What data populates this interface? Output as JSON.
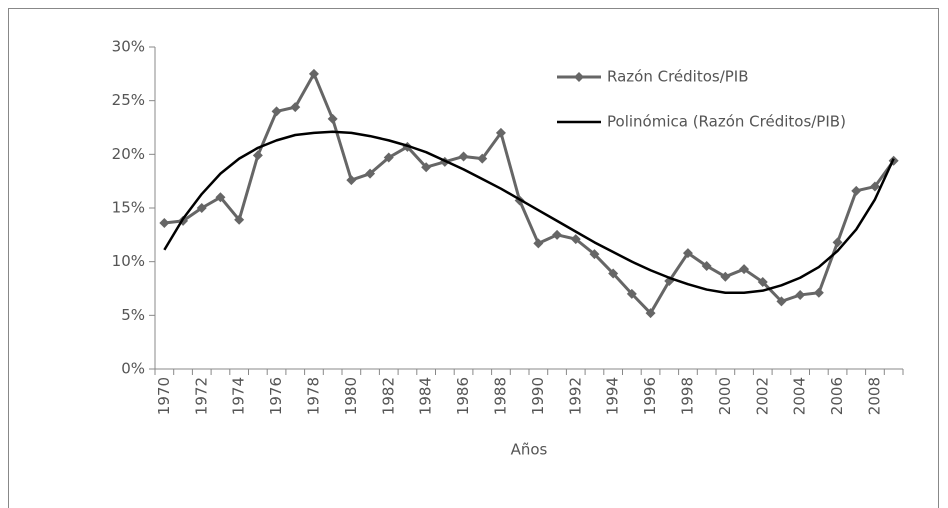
{
  "chart_data": {
    "type": "line",
    "x_label": "Años",
    "categories": [
      "1970",
      null,
      "1972",
      null,
      "1974",
      null,
      "1976",
      null,
      "1978",
      null,
      "1980",
      null,
      "1982",
      null,
      "1984",
      null,
      "1986",
      null,
      "1988",
      null,
      "1990",
      null,
      "1992",
      null,
      "1994",
      null,
      "1996",
      null,
      "1998",
      null,
      "2000",
      null,
      "2002",
      null,
      "2004",
      null,
      "2006",
      null,
      "2008",
      null
    ],
    "series": [
      {
        "name": "Razón Créditos/PIB",
        "color": "#666666",
        "marker": "diamond",
        "values": [
          13.6,
          13.8,
          15.0,
          16.0,
          13.9,
          19.9,
          24.0,
          24.4,
          27.5,
          23.3,
          17.6,
          18.2,
          19.7,
          20.7,
          18.8,
          19.3,
          19.8,
          19.6,
          22.0,
          15.7,
          11.7,
          12.5,
          12.1,
          10.7,
          8.9,
          7.0,
          5.2,
          8.2,
          10.8,
          9.6,
          8.6,
          9.3,
          8.1,
          6.3,
          6.9,
          7.1,
          11.8,
          16.6,
          17.0,
          19.4
        ]
      },
      {
        "name": "Polinómica (Razón Créditos/PIB)",
        "color": "#000000",
        "values": [
          11.1,
          14.0,
          16.3,
          18.2,
          19.6,
          20.6,
          21.3,
          21.8,
          22.0,
          22.1,
          22.0,
          21.7,
          21.3,
          20.8,
          20.2,
          19.4,
          18.6,
          17.7,
          16.8,
          15.8,
          14.8,
          13.8,
          12.8,
          11.8,
          10.9,
          10.0,
          9.2,
          8.5,
          7.9,
          7.4,
          7.1,
          7.1,
          7.3,
          7.8,
          8.5,
          9.5,
          11.0,
          13.0,
          15.8,
          19.6
        ]
      }
    ],
    "ylim": [
      0,
      30
    ],
    "yticks": [
      {
        "value": 0,
        "label": "0%"
      },
      {
        "value": 5,
        "label": "5%"
      },
      {
        "value": 10,
        "label": "10%"
      },
      {
        "value": 15,
        "label": "15%"
      },
      {
        "value": 20,
        "label": "20%"
      },
      {
        "value": 25,
        "label": "25%"
      },
      {
        "value": 30,
        "label": "30%"
      }
    ],
    "grid": false,
    "legend": "top-right"
  }
}
